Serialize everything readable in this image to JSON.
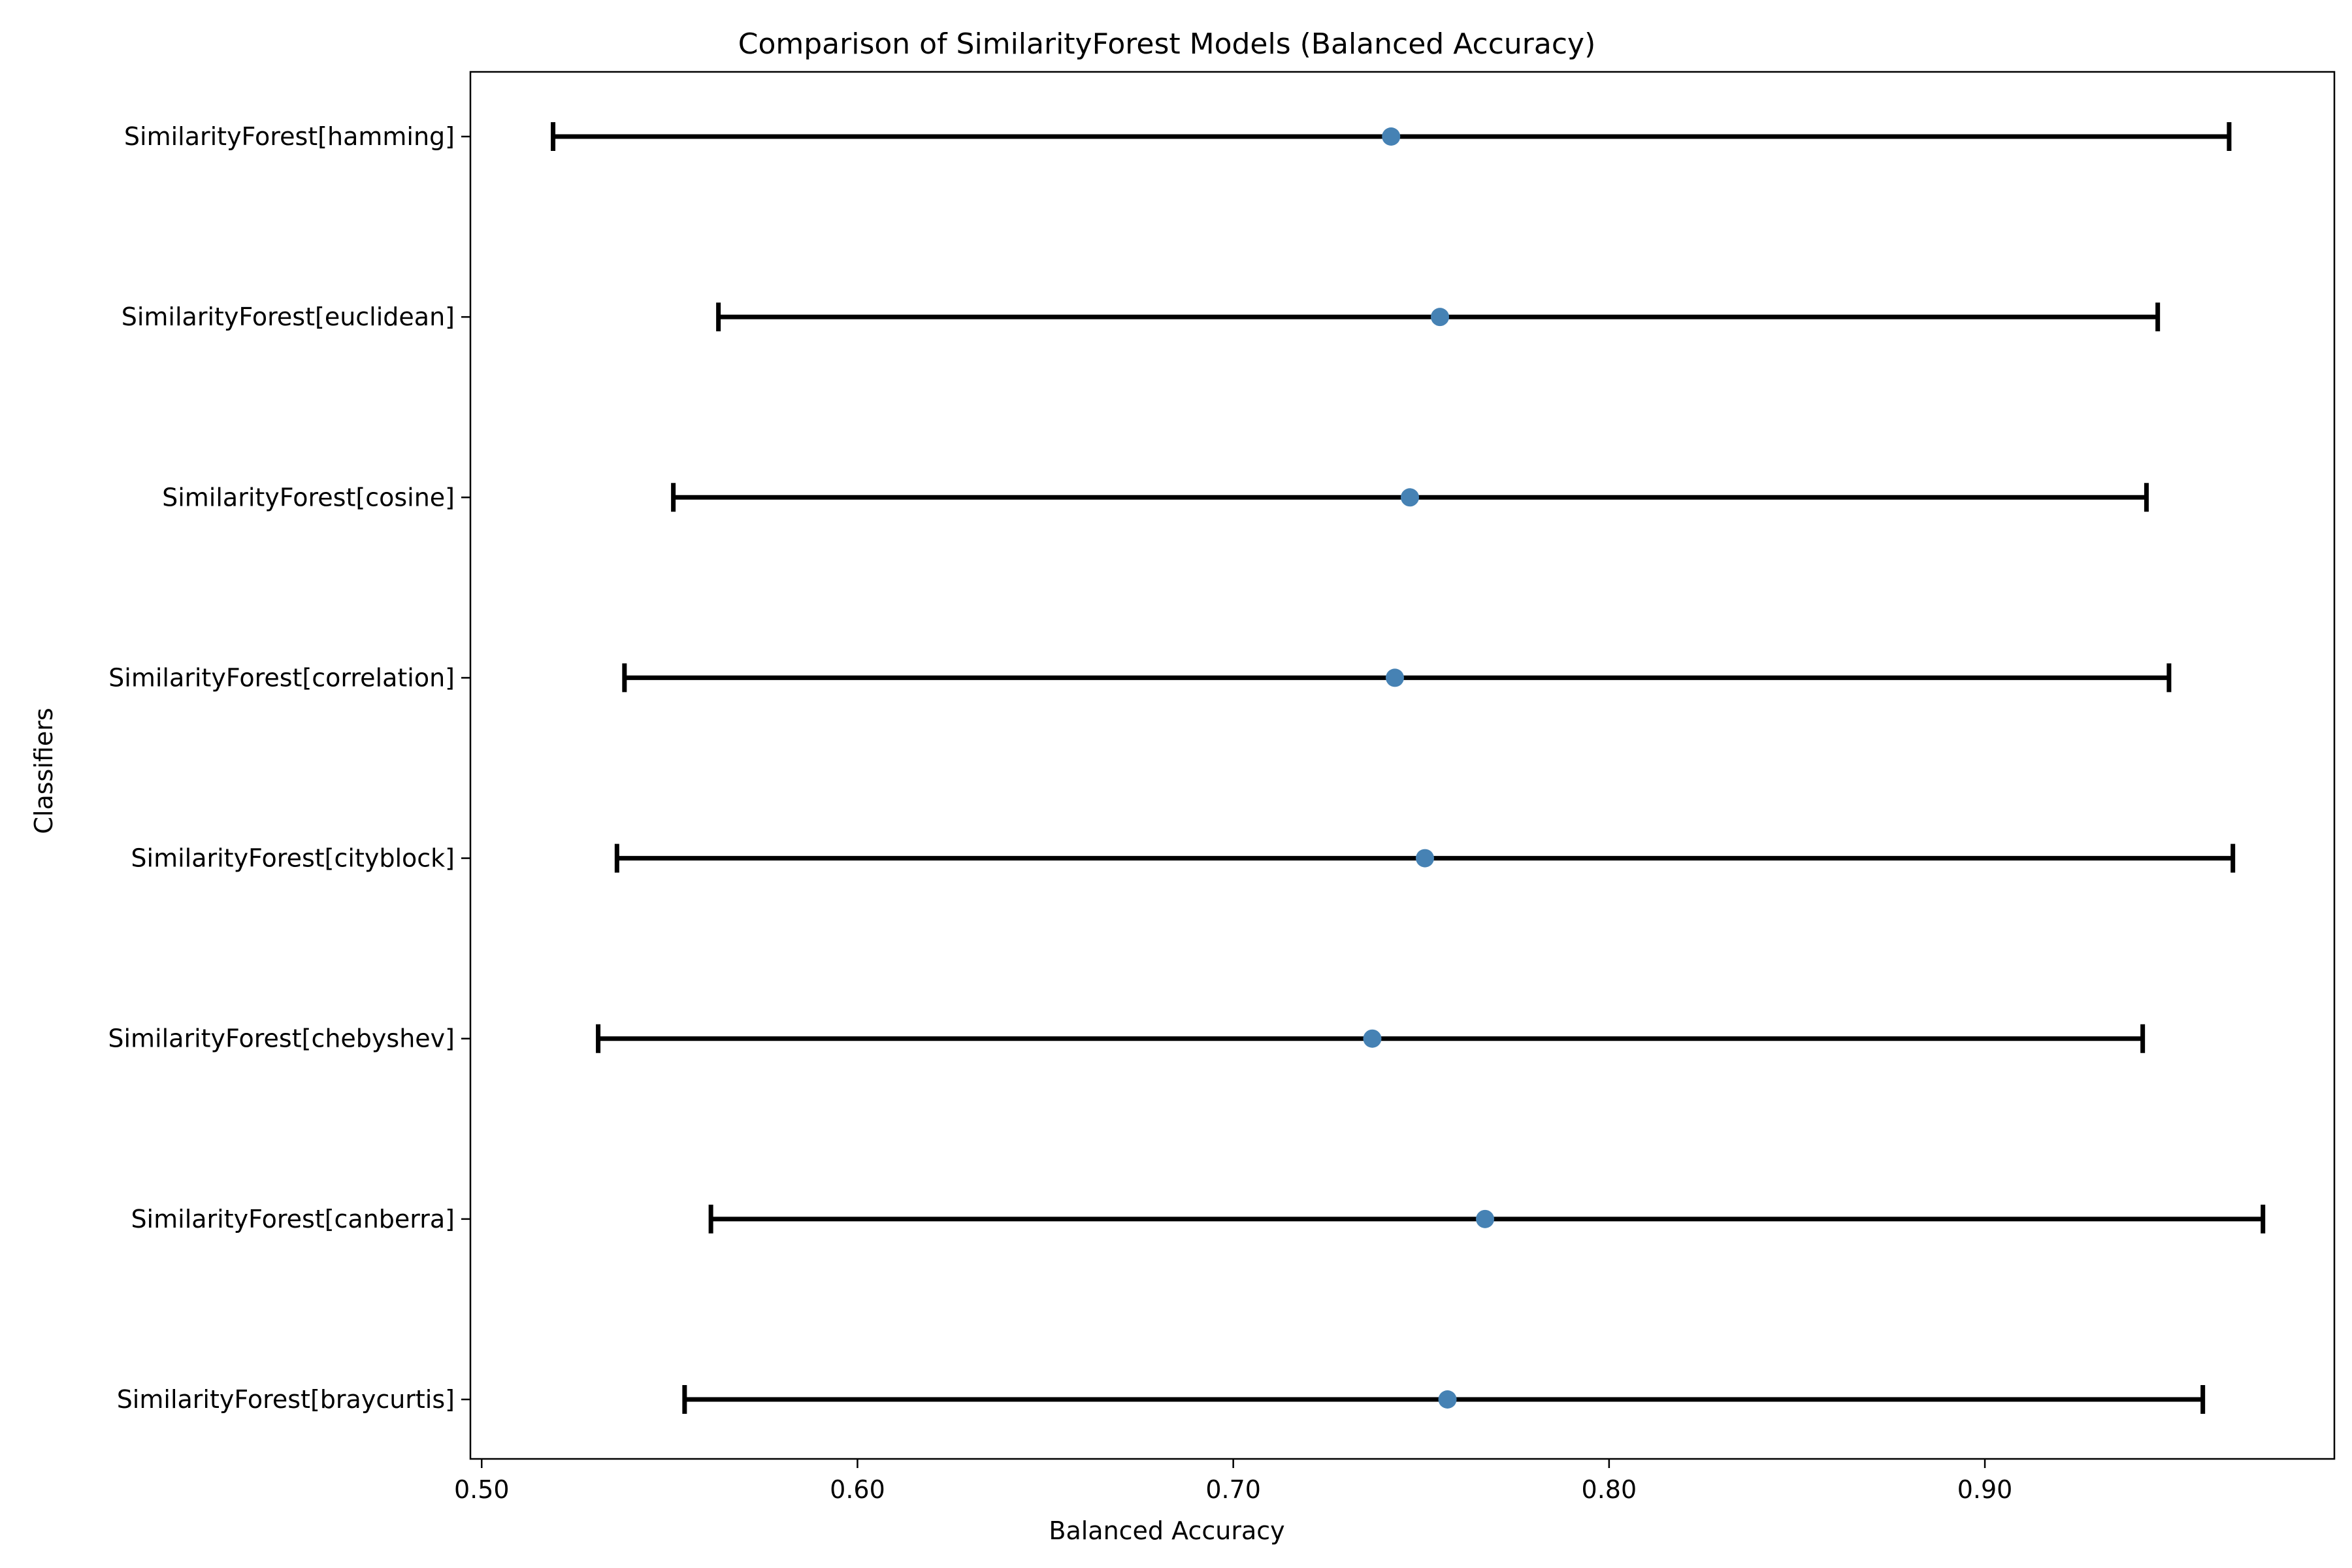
{
  "chart_data": {
    "type": "errorbar",
    "title": "Comparison of SimilarityForest Models (Balanced Accuracy)",
    "xlabel": "Balanced Accuracy",
    "ylabel": "Classifiers",
    "xlim": [
      0.497,
      0.993
    ],
    "xticks": [
      0.5,
      0.6,
      0.7,
      0.8,
      0.9
    ],
    "xtick_labels": [
      "0.50",
      "0.60",
      "0.70",
      "0.80",
      "0.90"
    ],
    "categories": [
      "SimilarityForest[hamming]",
      "SimilarityForest[euclidean]",
      "SimilarityForest[cosine]",
      "SimilarityForest[correlation]",
      "SimilarityForest[cityblock]",
      "SimilarityForest[chebyshev]",
      "SimilarityForest[canberra]",
      "SimilarityForest[braycurtis]"
    ],
    "values": [
      0.742,
      0.755,
      0.747,
      0.743,
      0.751,
      0.737,
      0.767,
      0.757
    ],
    "lower": [
      0.519,
      0.563,
      0.551,
      0.538,
      0.536,
      0.531,
      0.561,
      0.554
    ],
    "upper": [
      0.965,
      0.946,
      0.943,
      0.949,
      0.966,
      0.942,
      0.974,
      0.958
    ],
    "grid": false,
    "colors": {
      "marker": "#4682b4",
      "errorbar": "#000000"
    }
  }
}
